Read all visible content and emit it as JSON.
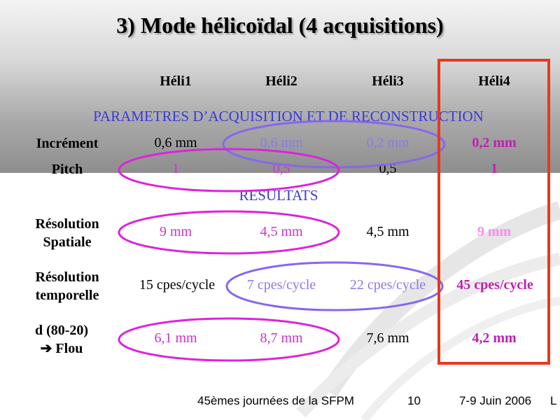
{
  "title": "3) Mode hélicoïdal (4 acquisitions)",
  "columns": [
    "Héli1",
    "Héli2",
    "Héli3",
    "Héli4"
  ],
  "section_acquisition": "PARAMETRES D’ACQUISITION ET DE RECONSTRUCTION",
  "section_results": "RESULTATS",
  "rows": {
    "increment": {
      "label": "Incrément",
      "values": [
        "0,6 mm",
        "0,6 mm",
        "0,2 mm",
        "0,2 mm"
      ]
    },
    "pitch": {
      "label": "Pitch",
      "values": [
        "1",
        "0,5",
        "0,5",
        "1"
      ]
    },
    "resolution_spatiale": {
      "label_line1": "Résolution",
      "label_line2": "Spatiale",
      "values": [
        "9 mm",
        "4,5 mm",
        "4,5 mm",
        "9 mm"
      ]
    },
    "resolution_temporelle": {
      "label_line1": "Résolution",
      "label_line2": "temporelle",
      "values": [
        "15 cpes/cycle",
        "7 cpes/cycle",
        "22 cpes/cycle",
        "45 cpes/cycle"
      ]
    },
    "flou": {
      "label_line1": "d (80-20)",
      "arrow": "➔",
      "label_line2": "Flou",
      "values": [
        "6,1 mm",
        "8,7 mm",
        "7,6 mm",
        "4,2 mm"
      ]
    }
  },
  "footer": {
    "event": "45èmes journées de la SFPM",
    "page": "10",
    "date": "7-9 Juin 2006",
    "trailing": "L"
  },
  "colors": {
    "highlight_box": "#e8391c",
    "ellipse_magenta": "#dd22dd",
    "ellipse_violet": "#8866ee",
    "section_blue": "#3a3ad6"
  }
}
